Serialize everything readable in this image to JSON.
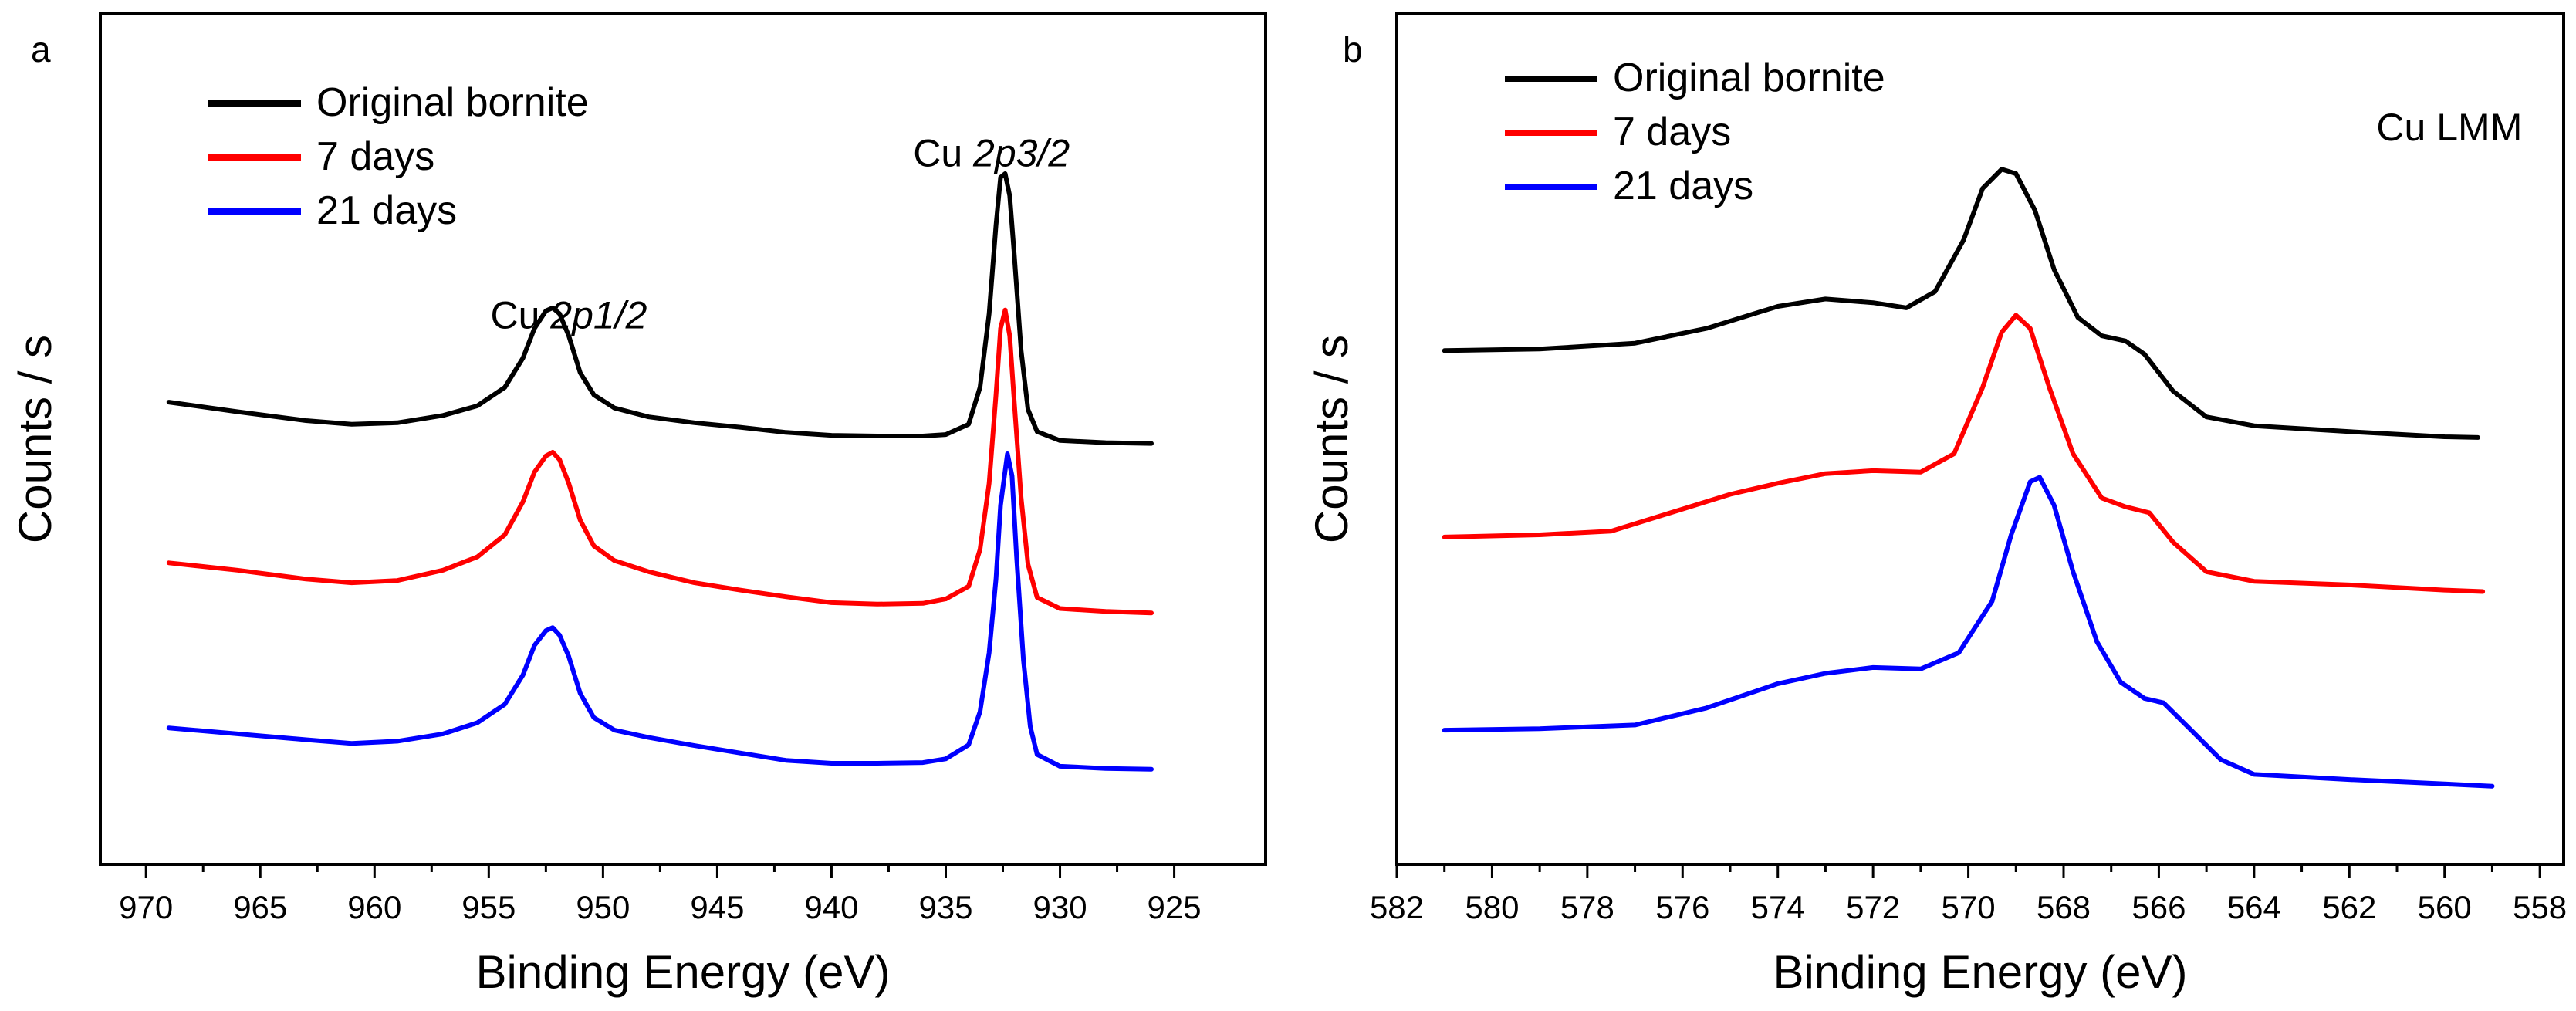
{
  "chart_data": [
    {
      "panel": "a",
      "type": "line",
      "xlabel": "Binding Energy (eV)",
      "ylabel": "Counts / s",
      "xlim": [
        972,
        921
      ],
      "xticks": [
        970,
        965,
        960,
        955,
        950,
        945,
        940,
        935,
        930,
        925
      ],
      "ylim": [
        0,
        100
      ],
      "grid": false,
      "legend_position": "top-left",
      "annotations": [
        {
          "text": "Cu ",
          "italic": "2p3/2",
          "x": 933,
          "y": 90
        },
        {
          "text": "Cu ",
          "italic": "2p1/2",
          "x": 951.5,
          "y": 68
        }
      ],
      "series": [
        {
          "name": "Original bornite",
          "color": "#000000",
          "points": [
            [
              969,
              58
            ],
            [
              966,
              56.7
            ],
            [
              963,
              55.5
            ],
            [
              961,
              55
            ],
            [
              959,
              55.2
            ],
            [
              957,
              56.2
            ],
            [
              955.5,
              57.5
            ],
            [
              954.3,
              60
            ],
            [
              953.5,
              64
            ],
            [
              953,
              68
            ],
            [
              952.5,
              70.4
            ],
            [
              952.2,
              70.8
            ],
            [
              951.9,
              70
            ],
            [
              951.5,
              67
            ],
            [
              951,
              62
            ],
            [
              950.4,
              59
            ],
            [
              949.5,
              57.2
            ],
            [
              948,
              56
            ],
            [
              946,
              55.2
            ],
            [
              944,
              54.6
            ],
            [
              942,
              53.9
            ],
            [
              940,
              53.5
            ],
            [
              938,
              53.4
            ],
            [
              936,
              53.4
            ],
            [
              935,
              53.6
            ],
            [
              934,
              55
            ],
            [
              933.5,
              60
            ],
            [
              933.1,
              70
            ],
            [
              932.8,
              82
            ],
            [
              932.6,
              88.5
            ],
            [
              932.4,
              89
            ],
            [
              932.2,
              86
            ],
            [
              932,
              78
            ],
            [
              931.7,
              65
            ],
            [
              931.4,
              57
            ],
            [
              931,
              54
            ],
            [
              930,
              52.8
            ],
            [
              928,
              52.5
            ],
            [
              926,
              52.4
            ]
          ]
        },
        {
          "name": "7 days",
          "color": "#ff0000",
          "points": [
            [
              969,
              36.2
            ],
            [
              966,
              35.2
            ],
            [
              963,
              34
            ],
            [
              961,
              33.5
            ],
            [
              959,
              33.8
            ],
            [
              957,
              35.2
            ],
            [
              955.5,
              37
            ],
            [
              954.3,
              40
            ],
            [
              953.5,
              44.5
            ],
            [
              953,
              48.5
            ],
            [
              952.5,
              50.7
            ],
            [
              952.2,
              51.2
            ],
            [
              951.9,
              50.2
            ],
            [
              951.5,
              47
            ],
            [
              951,
              42
            ],
            [
              950.4,
              38.5
            ],
            [
              949.5,
              36.5
            ],
            [
              948,
              35
            ],
            [
              946,
              33.5
            ],
            [
              944,
              32.5
            ],
            [
              942,
              31.6
            ],
            [
              940,
              30.8
            ],
            [
              938,
              30.6
            ],
            [
              936,
              30.7
            ],
            [
              935,
              31.3
            ],
            [
              934,
              33
            ],
            [
              933.5,
              38
            ],
            [
              933.1,
              47
            ],
            [
              932.8,
              59
            ],
            [
              932.6,
              68
            ],
            [
              932.4,
              70.5
            ],
            [
              932.2,
              67
            ],
            [
              932,
              58
            ],
            [
              931.7,
              45
            ],
            [
              931.4,
              36
            ],
            [
              931,
              31.5
            ],
            [
              930,
              30
            ],
            [
              928,
              29.6
            ],
            [
              926,
              29.4
            ]
          ]
        },
        {
          "name": "21 days",
          "color": "#0000ff",
          "points": [
            [
              969,
              13.8
            ],
            [
              966,
              13
            ],
            [
              963,
              12.2
            ],
            [
              961,
              11.7
            ],
            [
              959,
              12
            ],
            [
              957,
              13
            ],
            [
              955.5,
              14.5
            ],
            [
              954.3,
              17
            ],
            [
              953.5,
              21
            ],
            [
              953,
              25
            ],
            [
              952.5,
              27
            ],
            [
              952.2,
              27.4
            ],
            [
              951.9,
              26.4
            ],
            [
              951.5,
              23.5
            ],
            [
              951,
              18.5
            ],
            [
              950.4,
              15.2
            ],
            [
              949.5,
              13.5
            ],
            [
              948,
              12.5
            ],
            [
              946,
              11.4
            ],
            [
              944,
              10.4
            ],
            [
              942,
              9.4
            ],
            [
              940,
              9
            ],
            [
              938,
              9
            ],
            [
              936,
              9.1
            ],
            [
              935,
              9.6
            ],
            [
              934,
              11.5
            ],
            [
              933.5,
              16
            ],
            [
              933.1,
              24
            ],
            [
              932.8,
              34
            ],
            [
              932.6,
              44
            ],
            [
              932.3,
              51
            ],
            [
              932.1,
              48
            ],
            [
              931.9,
              37
            ],
            [
              931.6,
              23
            ],
            [
              931.3,
              14
            ],
            [
              931,
              10.2
            ],
            [
              930,
              8.6
            ],
            [
              928,
              8.3
            ],
            [
              926,
              8.2
            ]
          ]
        }
      ]
    },
    {
      "panel": "b",
      "type": "line",
      "xlabel": "Binding Energy (eV)",
      "ylabel": "Counts / s",
      "xlim": [
        582,
        557.5
      ],
      "xticks": [
        582,
        580,
        578,
        576,
        574,
        572,
        570,
        568,
        566,
        564,
        562,
        560,
        558
      ],
      "ylim": [
        0,
        100
      ],
      "grid": false,
      "legend_position": "top-left",
      "annotations": [
        {
          "text": "Cu LMM",
          "italic": "",
          "x": 559.9,
          "y": 93.5
        }
      ],
      "series": [
        {
          "name": "Original bornite",
          "color": "#000000",
          "points": [
            [
              581,
              65
            ],
            [
              579,
              65.2
            ],
            [
              577,
              66
            ],
            [
              575.5,
              68
            ],
            [
              574,
              71
            ],
            [
              573,
              72
            ],
            [
              572,
              71.5
            ],
            [
              571.3,
              70.8
            ],
            [
              570.7,
              73
            ],
            [
              570.1,
              80
            ],
            [
              569.7,
              87
            ],
            [
              569.3,
              89.6
            ],
            [
              569,
              89
            ],
            [
              568.6,
              84
            ],
            [
              568.2,
              76
            ],
            [
              567.7,
              69.5
            ],
            [
              567.2,
              67
            ],
            [
              566.7,
              66.3
            ],
            [
              566.3,
              64.5
            ],
            [
              565.7,
              59.5
            ],
            [
              565,
              56
            ],
            [
              564,
              54.8
            ],
            [
              562,
              54
            ],
            [
              560,
              53.3
            ],
            [
              559.3,
              53.2
            ]
          ]
        },
        {
          "name": "7 days",
          "color": "#ff0000",
          "points": [
            [
              581,
              39.7
            ],
            [
              579,
              40
            ],
            [
              577.5,
              40.5
            ],
            [
              576,
              43.5
            ],
            [
              575,
              45.5
            ],
            [
              574,
              47
            ],
            [
              573,
              48.3
            ],
            [
              572,
              48.7
            ],
            [
              571,
              48.5
            ],
            [
              570.3,
              51
            ],
            [
              569.7,
              60
            ],
            [
              569.3,
              67.5
            ],
            [
              569,
              69.8
            ],
            [
              568.7,
              68
            ],
            [
              568.3,
              60
            ],
            [
              567.8,
              51
            ],
            [
              567.2,
              45
            ],
            [
              566.7,
              43.8
            ],
            [
              566.2,
              43
            ],
            [
              565.7,
              39
            ],
            [
              565,
              35
            ],
            [
              564,
              33.7
            ],
            [
              562,
              33.2
            ],
            [
              560,
              32.5
            ],
            [
              559.2,
              32.3
            ]
          ]
        },
        {
          "name": "21 days",
          "color": "#0000ff",
          "points": [
            [
              581,
              13.5
            ],
            [
              579,
              13.7
            ],
            [
              577,
              14.2
            ],
            [
              575.5,
              16.5
            ],
            [
              574,
              19.8
            ],
            [
              573,
              21.2
            ],
            [
              572,
              22
            ],
            [
              571,
              21.8
            ],
            [
              570.2,
              24
            ],
            [
              569.5,
              31
            ],
            [
              569.1,
              40
            ],
            [
              568.7,
              47.2
            ],
            [
              568.5,
              47.8
            ],
            [
              568.2,
              44
            ],
            [
              567.8,
              35
            ],
            [
              567.3,
              25.5
            ],
            [
              566.8,
              20
            ],
            [
              566.3,
              17.8
            ],
            [
              565.9,
              17.2
            ],
            [
              565.4,
              14
            ],
            [
              564.7,
              9.5
            ],
            [
              564,
              7.5
            ],
            [
              562,
              6.8
            ],
            [
              560,
              6.2
            ],
            [
              559,
              5.9
            ]
          ]
        }
      ]
    }
  ]
}
